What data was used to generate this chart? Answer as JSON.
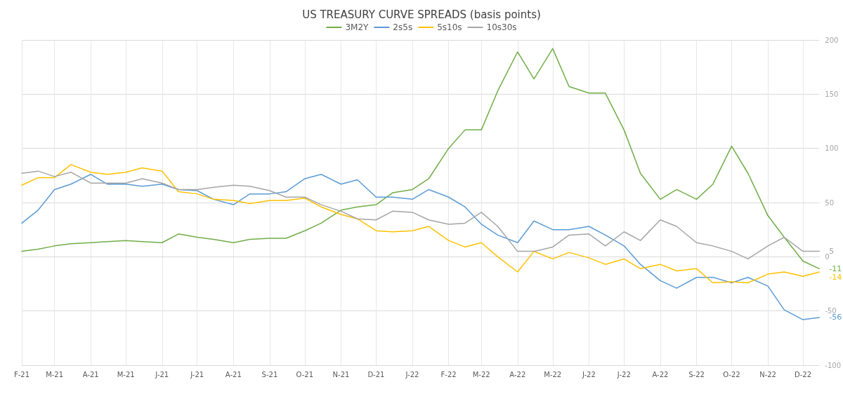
{
  "chart_data": {
    "type": "line",
    "title": "US TREASURY CURVE SPREADS (basis points)",
    "x": [
      "2021-02-01",
      "2021-02-15",
      "2021-03-01",
      "2021-03-15",
      "2021-04-01",
      "2021-04-15",
      "2021-05-01",
      "2021-05-15",
      "2021-06-01",
      "2021-06-15",
      "2021-07-01",
      "2021-07-15",
      "2021-08-01",
      "2021-08-15",
      "2021-09-01",
      "2021-09-15",
      "2021-10-01",
      "2021-10-15",
      "2021-11-01",
      "2021-11-15",
      "2021-12-01",
      "2021-12-15",
      "2022-01-01",
      "2022-01-15",
      "2022-02-01",
      "2022-02-15",
      "2022-03-01",
      "2022-03-15",
      "2022-04-01",
      "2022-04-15",
      "2022-05-01",
      "2022-05-15",
      "2022-06-01",
      "2022-06-15",
      "2022-07-01",
      "2022-07-15",
      "2022-08-01",
      "2022-08-15",
      "2022-09-01",
      "2022-09-15",
      "2022-10-01",
      "2022-10-15",
      "2022-11-01",
      "2022-11-15",
      "2022-12-01",
      "2022-12-15"
    ],
    "series": [
      {
        "name": "3M2Y",
        "color": "#70ad47",
        "values": [
          5,
          7,
          10,
          12,
          13,
          14,
          15,
          14,
          13,
          21,
          18,
          16,
          13,
          16,
          17,
          17,
          24,
          31,
          43,
          46,
          48,
          59,
          62,
          72,
          100,
          117,
          117,
          153,
          189,
          164,
          192,
          157,
          151,
          151,
          117,
          77,
          53,
          62,
          53,
          67,
          102,
          77,
          38,
          18,
          -4,
          -11
        ],
        "value_labels": [
          null,
          null,
          null,
          null,
          null,
          null,
          null,
          null,
          null,
          null,
          null,
          null,
          null,
          null,
          null,
          null,
          null,
          null,
          null,
          null,
          null,
          null,
          null,
          null,
          null,
          null,
          null,
          null,
          null,
          null,
          null,
          null,
          null,
          null,
          null,
          null,
          null,
          null,
          null,
          null,
          null,
          null,
          null,
          null,
          null,
          "-11"
        ]
      },
      {
        "name": "2s5s",
        "color": "#5b9bd5",
        "values": [
          31,
          43,
          62,
          67,
          76,
          67,
          67,
          65,
          67,
          62,
          61,
          53,
          48,
          58,
          58,
          60,
          72,
          76,
          67,
          71,
          55,
          55,
          53,
          62,
          55,
          46,
          30,
          20,
          13,
          33,
          25,
          25,
          28,
          20,
          10,
          -7,
          -22,
          -29,
          -19,
          -19,
          -24,
          -19,
          -27,
          -49,
          -58,
          -56
        ],
        "value_labels": [
          null,
          null,
          null,
          null,
          null,
          null,
          null,
          null,
          null,
          null,
          null,
          null,
          null,
          null,
          null,
          null,
          null,
          null,
          null,
          null,
          null,
          null,
          null,
          null,
          null,
          null,
          null,
          null,
          null,
          null,
          null,
          null,
          null,
          null,
          null,
          null,
          null,
          null,
          null,
          null,
          null,
          null,
          null,
          null,
          null,
          "-56"
        ]
      },
      {
        "name": "5s10s",
        "color": "#ffc000",
        "values": [
          66,
          73,
          73,
          85,
          78,
          76,
          78,
          82,
          79,
          60,
          58,
          53,
          52,
          49,
          52,
          52,
          54,
          46,
          39,
          35,
          24,
          23,
          24,
          28,
          15,
          9,
          13,
          0,
          -14,
          5,
          -2,
          4,
          -1,
          -7,
          -2,
          -11,
          -7,
          -13,
          -11,
          -24,
          -23,
          -24,
          -16,
          -14,
          -18,
          -14
        ],
        "value_labels": [
          null,
          null,
          null,
          null,
          null,
          null,
          null,
          null,
          null,
          null,
          null,
          null,
          null,
          null,
          null,
          null,
          null,
          null,
          null,
          null,
          null,
          null,
          null,
          null,
          null,
          null,
          null,
          null,
          null,
          null,
          null,
          null,
          null,
          null,
          null,
          null,
          null,
          null,
          null,
          null,
          null,
          null,
          null,
          null,
          null,
          "-14"
        ]
      },
      {
        "name": "10s30s",
        "color": "#a5a5a5",
        "values": [
          77,
          79,
          74,
          78,
          68,
          68,
          68,
          72,
          68,
          62,
          62,
          64,
          66,
          65,
          61,
          55,
          55,
          48,
          42,
          35,
          34,
          42,
          41,
          34,
          30,
          31,
          41,
          28,
          5,
          5,
          9,
          20,
          21,
          10,
          23,
          15,
          34,
          28,
          13,
          10,
          5,
          -2,
          10,
          18,
          5,
          5
        ],
        "value_labels": [
          null,
          null,
          null,
          null,
          null,
          null,
          null,
          null,
          null,
          null,
          null,
          null,
          null,
          null,
          null,
          null,
          null,
          null,
          null,
          null,
          null,
          null,
          null,
          null,
          null,
          null,
          null,
          null,
          null,
          null,
          null,
          null,
          null,
          null,
          null,
          null,
          null,
          null,
          null,
          null,
          null,
          null,
          null,
          null,
          null,
          "5"
        ]
      }
    ],
    "xlim": [
      "2021-02-01",
      "2022-12-15"
    ],
    "xticks": [
      {
        "value": "2021-02-01",
        "label": "F-21"
      },
      {
        "value": "2021-03-01",
        "label": "M-21"
      },
      {
        "value": "2021-04-01",
        "label": "A-21"
      },
      {
        "value": "2021-05-01",
        "label": "M-21"
      },
      {
        "value": "2021-06-01",
        "label": "J-21"
      },
      {
        "value": "2021-07-01",
        "label": "J-21"
      },
      {
        "value": "2021-08-01",
        "label": "A-21"
      },
      {
        "value": "2021-09-01",
        "label": "S-21"
      },
      {
        "value": "2021-10-01",
        "label": "O-21"
      },
      {
        "value": "2021-11-01",
        "label": "N-21"
      },
      {
        "value": "2021-12-01",
        "label": "D-21"
      },
      {
        "value": "2022-01-01",
        "label": "J-22"
      },
      {
        "value": "2022-02-01",
        "label": "F-22"
      },
      {
        "value": "2022-03-01",
        "label": "M-22"
      },
      {
        "value": "2022-04-01",
        "label": "A-22"
      },
      {
        "value": "2022-05-01",
        "label": "M-22"
      },
      {
        "value": "2022-06-01",
        "label": "J-22"
      },
      {
        "value": "2022-07-01",
        "label": "J-22"
      },
      {
        "value": "2022-08-01",
        "label": "A-22"
      },
      {
        "value": "2022-09-01",
        "label": "S-22"
      },
      {
        "value": "2022-10-01",
        "label": "O-22"
      },
      {
        "value": "2022-11-01",
        "label": "N-22"
      },
      {
        "value": "2022-12-01",
        "label": "D-22"
      }
    ],
    "ylim": [
      -100,
      200
    ],
    "yticks": [
      -100,
      -50,
      0,
      50,
      100,
      150,
      200
    ],
    "grid": true,
    "legend": "top",
    "marker": "none",
    "line_style": "solid"
  }
}
